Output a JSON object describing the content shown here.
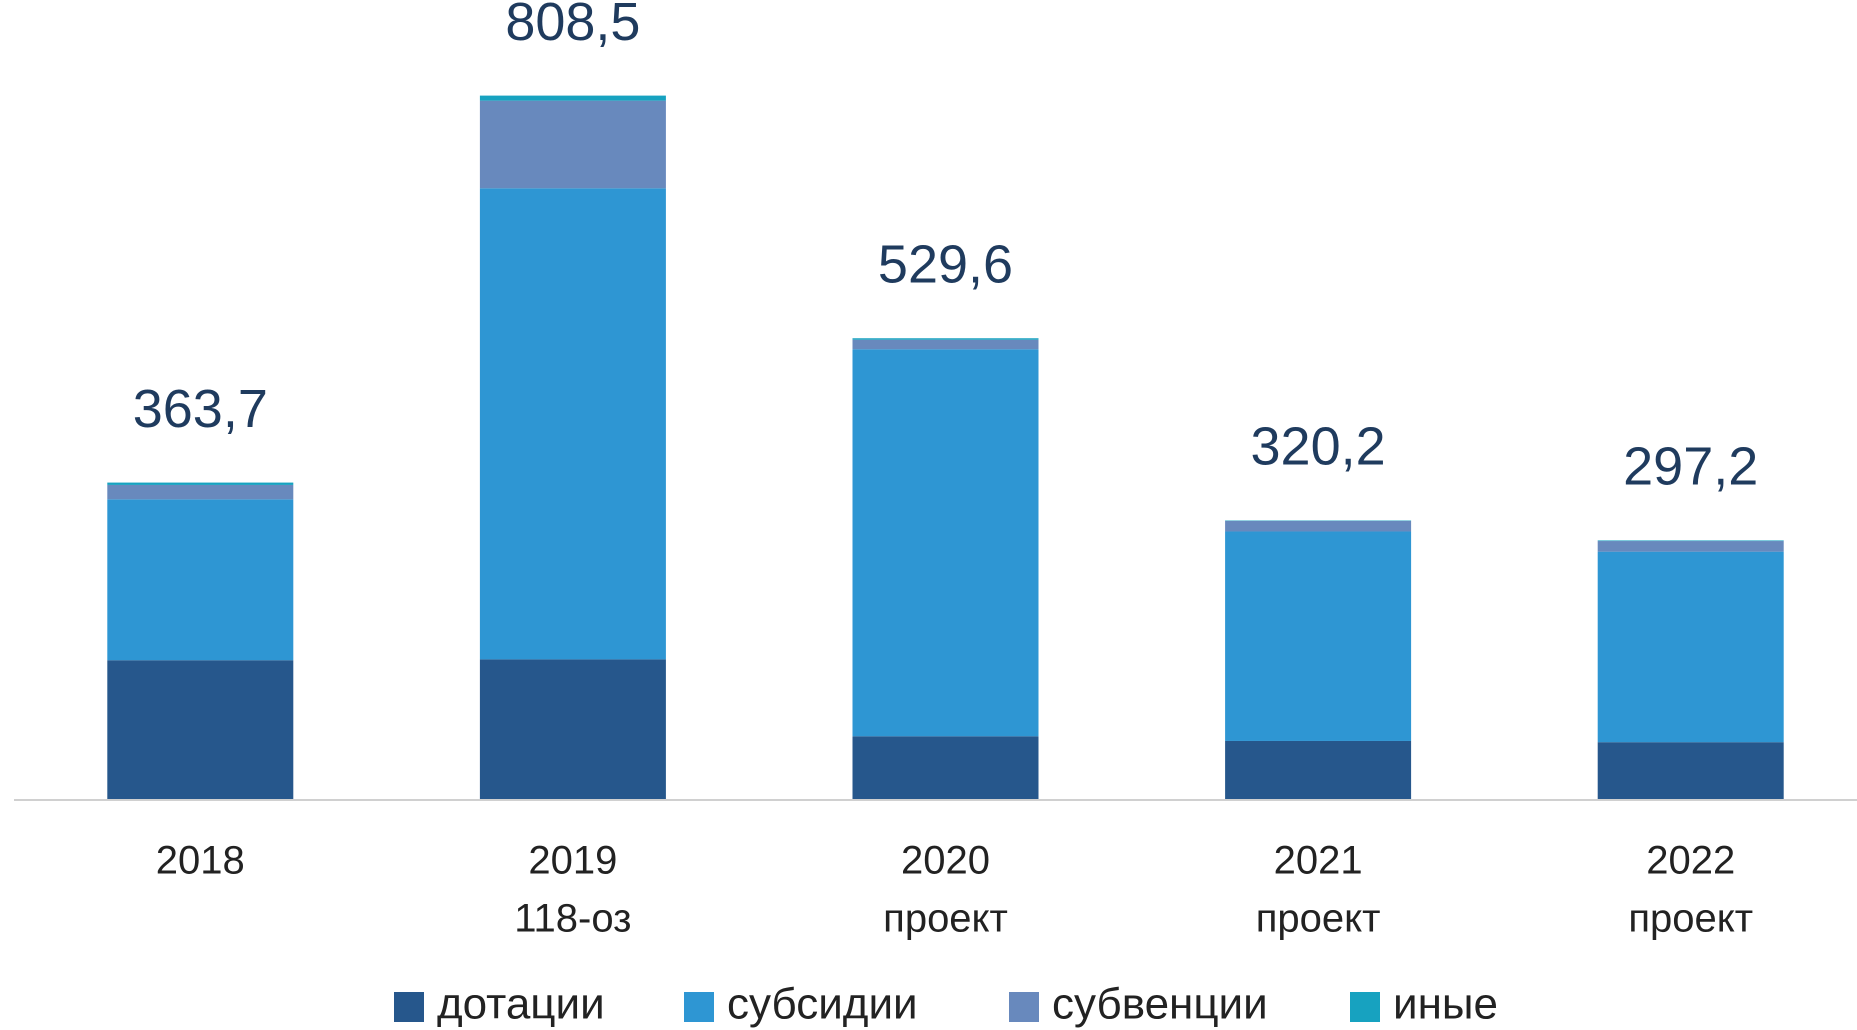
{
  "chart_data": {
    "type": "stacked_bar",
    "categories": [
      "2018",
      "2019",
      "2020",
      "2021",
      "2022"
    ],
    "sublabels": [
      null,
      "118-оз",
      "проект",
      "проект",
      "проект"
    ],
    "series": [
      {
        "name": "дотации",
        "color": "#26578c",
        "values": [
          159.5,
          160.5,
          72.1,
          66.7,
          65.3
        ]
      },
      {
        "name": "субсидии",
        "color": "#2e96d3",
        "values": [
          185.0,
          541.5,
          444.9,
          240.8,
          219.0
        ]
      },
      {
        "name": "субвенции",
        "color": "#6889bd",
        "values": [
          16.5,
          100.7,
          10.9,
          12.2,
          12.2
        ]
      },
      {
        "name": "иные",
        "color": "#17a2c0",
        "values": [
          2.7,
          5.8,
          1.7,
          0.5,
          0.7
        ]
      }
    ],
    "totals": [
      363.7,
      808.5,
      529.6,
      320.2,
      297.2
    ],
    "total_labels": [
      "363,7",
      "808,5",
      "529,6",
      "320,2",
      "297,2"
    ],
    "legend": "bottom"
  }
}
